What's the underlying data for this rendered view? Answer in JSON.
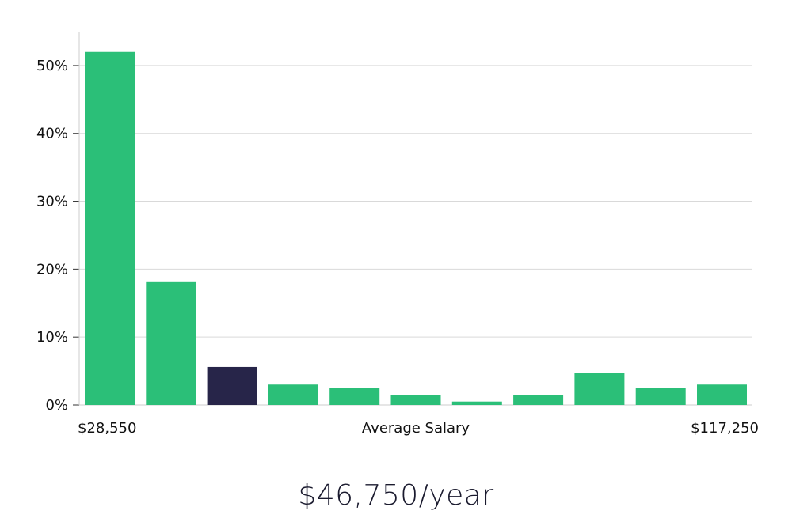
{
  "chart_data": {
    "type": "bar",
    "categories": [
      "",
      "",
      "",
      "",
      "",
      "",
      "",
      "",
      "",
      "",
      ""
    ],
    "values": [
      52,
      18.2,
      5.6,
      3.0,
      2.5,
      1.5,
      0.5,
      1.5,
      4.7,
      2.5,
      3.0
    ],
    "highlight_index": 2,
    "ylim": [
      0,
      55
    ],
    "yticks": [
      0,
      10,
      20,
      30,
      40,
      50
    ],
    "ytick_labels": [
      "0%",
      "10%",
      "20%",
      "30%",
      "40%",
      "50%"
    ],
    "xlabel": "Average Salary",
    "x_min_label": "$28,550",
    "x_max_label": "$117,250",
    "grid": true,
    "colors": {
      "bar": "#2bbf78",
      "highlight": "#272549",
      "grid": "#d9d9d9",
      "axis": "#cccccc"
    }
  },
  "salary_text": "$46,750/year"
}
